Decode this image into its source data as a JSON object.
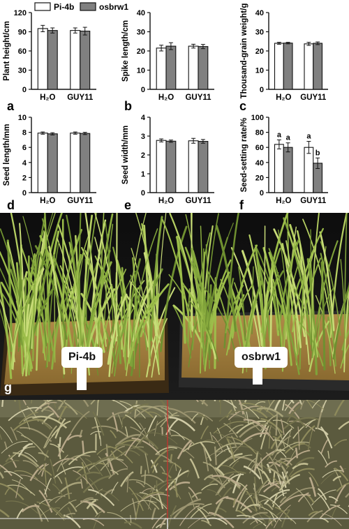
{
  "legend": [
    "Pi-4b",
    "osbrw1"
  ],
  "colors": {
    "pi4b": "#ffffff",
    "osbrw1": "#808080",
    "axis": "#111111"
  },
  "chart_data": [
    {
      "type": "bar",
      "panel": "a",
      "ylabel": "Plant height/cm",
      "categories": [
        "H₂O",
        "GUY11"
      ],
      "ylim": [
        0,
        120
      ],
      "yticks": [
        0,
        30,
        60,
        90,
        120
      ],
      "series": [
        {
          "name": "Pi-4b",
          "values": [
            95,
            92
          ],
          "errors": [
            5,
            4
          ]
        },
        {
          "name": "osbrw1",
          "values": [
            92,
            91
          ],
          "errors": [
            4,
            6
          ]
        }
      ]
    },
    {
      "type": "bar",
      "panel": "b",
      "ylabel": "Spike length/cm",
      "categories": [
        "H₂O",
        "GUY11"
      ],
      "ylim": [
        0,
        40
      ],
      "yticks": [
        0,
        10,
        20,
        30,
        40
      ],
      "series": [
        {
          "name": "Pi-4b",
          "values": [
            21.5,
            22.5
          ],
          "errors": [
            1.5,
            1
          ]
        },
        {
          "name": "osbrw1",
          "values": [
            22.5,
            22.3
          ],
          "errors": [
            1.8,
            1.1
          ]
        }
      ]
    },
    {
      "type": "bar",
      "panel": "c",
      "ylabel": "Thousand-grain weight/g",
      "categories": [
        "H₂O",
        "GUY11"
      ],
      "ylim": [
        0,
        40
      ],
      "yticks": [
        0,
        10,
        20,
        30,
        40
      ],
      "series": [
        {
          "name": "Pi-4b",
          "values": [
            24,
            23.7
          ],
          "errors": [
            0.5,
            0.8
          ]
        },
        {
          "name": "osbrw1",
          "values": [
            24.1,
            24
          ],
          "errors": [
            0.4,
            0.7
          ]
        }
      ]
    },
    {
      "type": "bar",
      "panel": "d",
      "ylabel": "Seed length/mm",
      "categories": [
        "H₂O",
        "GUY11"
      ],
      "ylim": [
        0,
        10
      ],
      "yticks": [
        0,
        2,
        4,
        6,
        8,
        10
      ],
      "series": [
        {
          "name": "Pi-4b",
          "values": [
            7.9,
            7.9
          ],
          "errors": [
            0.15,
            0.15
          ]
        },
        {
          "name": "osbrw1",
          "values": [
            7.8,
            7.85
          ],
          "errors": [
            0.15,
            0.15
          ]
        }
      ]
    },
    {
      "type": "bar",
      "panel": "e",
      "ylabel": "Seed width/mm",
      "categories": [
        "H₂O",
        "GUY11"
      ],
      "ylim": [
        0,
        4
      ],
      "yticks": [
        0,
        1,
        2,
        3,
        4
      ],
      "series": [
        {
          "name": "Pi-4b",
          "values": [
            2.77,
            2.75
          ],
          "errors": [
            0.08,
            0.13
          ]
        },
        {
          "name": "osbrw1",
          "values": [
            2.73,
            2.72
          ],
          "errors": [
            0.06,
            0.1
          ]
        }
      ]
    },
    {
      "type": "bar",
      "panel": "f",
      "ylabel": "Seed-setting rate/%",
      "categories": [
        "H₂O",
        "GUY11"
      ],
      "ylim": [
        0,
        100
      ],
      "yticks": [
        0,
        20,
        40,
        60,
        80,
        100
      ],
      "series": [
        {
          "name": "Pi-4b",
          "values": [
            64,
            60
          ],
          "errors": [
            6,
            8
          ],
          "sig": [
            "a",
            "a"
          ]
        },
        {
          "name": "osbrw1",
          "values": [
            60,
            39
          ],
          "errors": [
            6,
            7
          ],
          "sig": [
            "a",
            "b"
          ]
        }
      ]
    }
  ],
  "photo_g": {
    "panel": "g",
    "label_left": "Pi-4b",
    "label_right": "osbrw1"
  }
}
